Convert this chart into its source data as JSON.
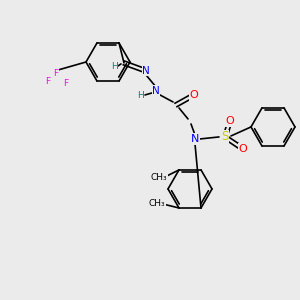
{
  "bg_color": "#ebebeb",
  "atom_colors": {
    "N": "#0000ff",
    "O": "#ff0000",
    "F": "#ff00ff",
    "S": "#cccc00",
    "C": "#000000",
    "H": "#008080"
  },
  "bond_color": "#000000",
  "font_size": 7.0,
  "lw": 1.2
}
